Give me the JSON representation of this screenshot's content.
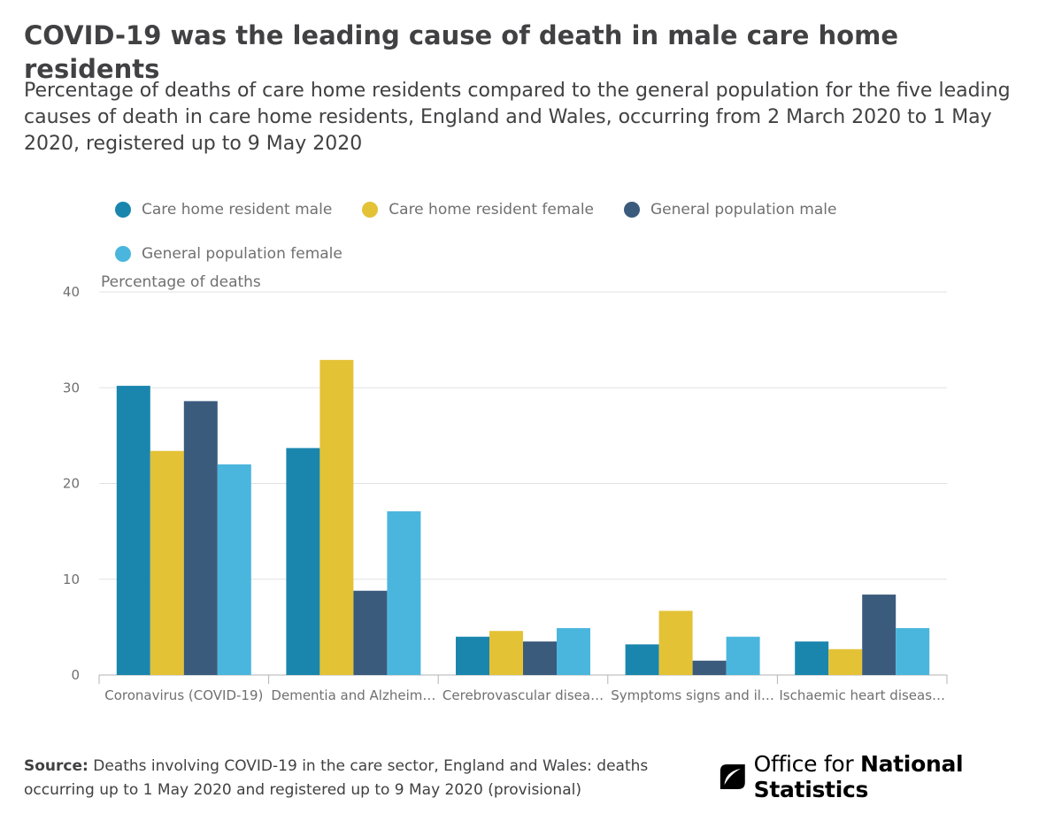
{
  "header": {
    "title": "COVID-19 was the leading cause of death in male care home residents",
    "subtitle": "Percentage of deaths of care home residents compared to the general population for the five leading causes of death in care home residents, England and Wales, occurring from 2 March 2020 to 1 May 2020, registered up to 9 May 2020"
  },
  "footer": {
    "source_label": "Source:",
    "source_text": " Deaths involving COVID-19 in the care sector, England and Wales: deaths occurring up to 1 May 2020 and registered up to 9 May 2020 (provisional)",
    "logo_text_regular": "Office for ",
    "logo_text_bold": "National Statistics"
  },
  "chart_data": {
    "type": "bar",
    "title": "COVID-19 was the leading cause of death in male care home residents",
    "ylabel": "Percentage of deaths",
    "xlabel": "",
    "ylim": [
      0,
      40
    ],
    "yticks": [
      0,
      10,
      20,
      30,
      40
    ],
    "grid": true,
    "legend_position": "top",
    "categories": [
      "Coronavirus (COVID-19)",
      "Dementia and Alzheim…",
      "Cerebrovascular disea…",
      "Symptoms signs and il…",
      "Ischaemic heart diseas…"
    ],
    "series": [
      {
        "name": "Care home resident male",
        "color": "#206095",
        "values": [
          30.2,
          23.7,
          4.0,
          3.2,
          3.5
        ]
      },
      {
        "name": "Care home resident female",
        "color": "#F2C318",
        "values": [
          23.4,
          32.9,
          4.6,
          6.7,
          2.7
        ]
      },
      {
        "name": "General population male",
        "color": "#27405E",
        "values": [
          28.6,
          8.8,
          3.5,
          1.5,
          8.4
        ]
      },
      {
        "name": "General population female",
        "color": "#27A0CC",
        "values": [
          22.0,
          17.1,
          4.9,
          4.0,
          4.9
        ]
      }
    ]
  }
}
